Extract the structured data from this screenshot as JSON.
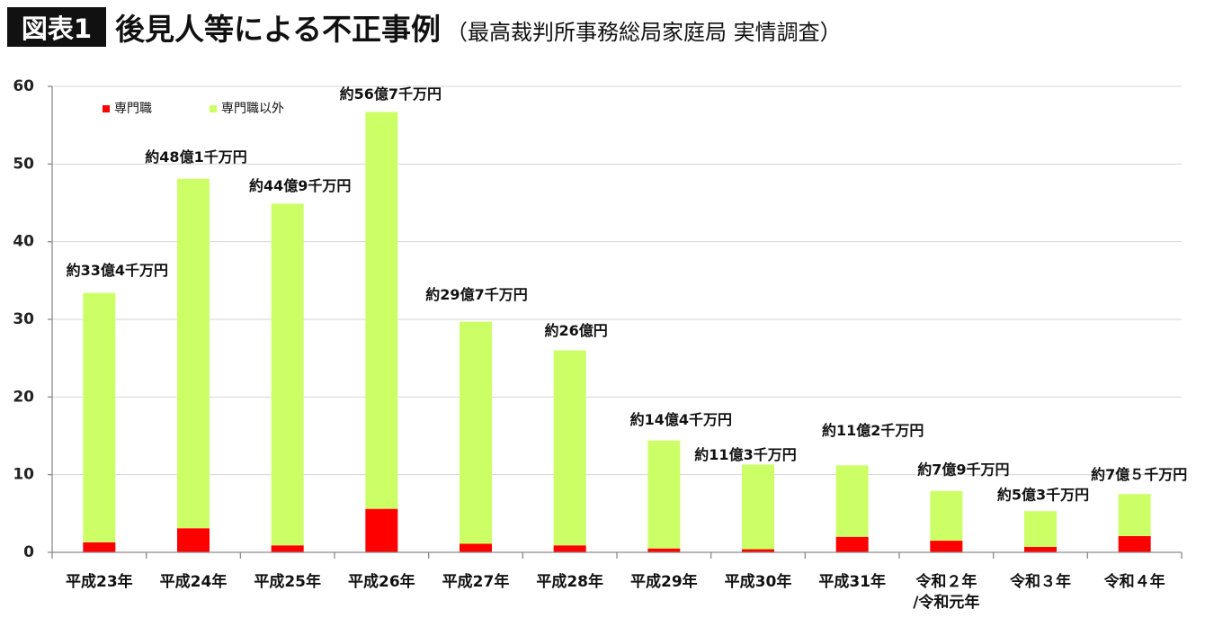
{
  "header": {
    "badge": "図表1",
    "title": "後見人等による不正事例",
    "source": "（最高裁判所事務総局家庭局 実情調査）"
  },
  "chart_data": {
    "type": "bar",
    "stacked": true,
    "categories": [
      [
        "平成23年"
      ],
      [
        "平成24年"
      ],
      [
        "平成25年"
      ],
      [
        "平成26年"
      ],
      [
        "平成27年"
      ],
      [
        "平成28年"
      ],
      [
        "平成29年"
      ],
      [
        "平成30年"
      ],
      [
        "平成31年"
      ],
      [
        "令和２年",
        "/令和元年"
      ],
      [
        "令和３年"
      ],
      [
        "令和４年"
      ]
    ],
    "series": [
      {
        "name": "専門職",
        "color": "#ff0000",
        "values": [
          1.3,
          3.1,
          0.9,
          5.6,
          1.1,
          0.9,
          0.5,
          0.4,
          2.0,
          1.5,
          0.7,
          2.1
        ]
      },
      {
        "name": "専門職以外",
        "color": "#ccff66",
        "values": [
          32.1,
          45.0,
          44.0,
          51.1,
          28.6,
          25.1,
          13.9,
          10.9,
          9.2,
          6.4,
          4.6,
          5.4
        ]
      }
    ],
    "totals": [
      33.4,
      48.1,
      44.9,
      56.7,
      29.7,
      26.0,
      14.4,
      11.3,
      11.2,
      7.9,
      5.3,
      7.5
    ],
    "data_labels": [
      "約33億4千万円",
      "約48億1千万円",
      "約44億9千万円",
      "約56億7千万円",
      "約29億7千万円",
      "約26億円",
      "約14億4千万円",
      "約11億3千万円",
      "約11億2千万円",
      "約7億9千万円",
      "約5億3千万円",
      "約7億５千万円"
    ],
    "ylim": [
      0,
      60
    ],
    "yticks": [
      0,
      10,
      20,
      30,
      40,
      50,
      60
    ],
    "xlabel": "",
    "ylabel": "",
    "grid": true,
    "legend": "top-left"
  }
}
